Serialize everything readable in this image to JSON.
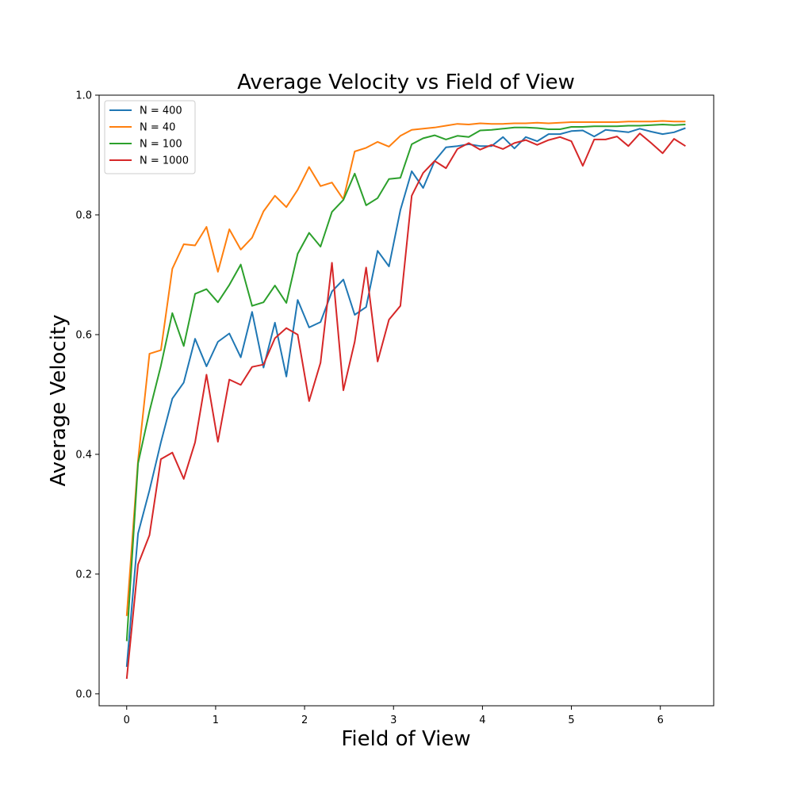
{
  "chart_data": {
    "type": "line",
    "title": "Average Velocity vs Field of View",
    "xlabel": "Field of View",
    "ylabel": "Average Velocity",
    "xlim": [
      -0.31,
      6.6
    ],
    "ylim": [
      -0.02,
      1.0
    ],
    "xticks": [
      0,
      1,
      2,
      3,
      4,
      5,
      6
    ],
    "xtick_labels": [
      "0",
      "1",
      "2",
      "3",
      "4",
      "5",
      "6"
    ],
    "yticks": [
      0.0,
      0.2,
      0.4,
      0.6,
      0.8,
      1.0
    ],
    "ytick_labels": [
      "0.0",
      "0.2",
      "0.4",
      "0.6",
      "0.8",
      "1.0"
    ],
    "grid": false,
    "legend_position": "upper-left",
    "x": [
      0,
      0.128,
      0.256,
      0.385,
      0.513,
      0.641,
      0.769,
      0.897,
      1.026,
      1.154,
      1.282,
      1.41,
      1.538,
      1.667,
      1.795,
      1.923,
      2.051,
      2.179,
      2.308,
      2.436,
      2.564,
      2.692,
      2.821,
      2.949,
      3.077,
      3.205,
      3.333,
      3.462,
      3.59,
      3.718,
      3.846,
      3.974,
      4.103,
      4.231,
      4.359,
      4.487,
      4.615,
      4.744,
      4.872,
      5.0,
      5.128,
      5.256,
      5.385,
      5.513,
      5.641,
      5.769,
      5.897,
      6.026,
      6.154,
      6.283
    ],
    "series": [
      {
        "name": "N = 400",
        "color": "#1f77b4",
        "values": [
          0.045,
          0.268,
          0.34,
          0.42,
          0.493,
          0.52,
          0.593,
          0.547,
          0.588,
          0.602,
          0.562,
          0.638,
          0.545,
          0.62,
          0.53,
          0.658,
          0.612,
          0.621,
          0.672,
          0.692,
          0.633,
          0.646,
          0.74,
          0.714,
          0.808,
          0.873,
          0.845,
          0.89,
          0.913,
          0.915,
          0.918,
          0.915,
          0.915,
          0.93,
          0.911,
          0.93,
          0.923,
          0.935,
          0.935,
          0.94,
          0.941,
          0.931,
          0.942,
          0.94,
          0.938,
          0.944,
          0.939,
          0.935,
          0.938,
          0.945
        ]
      },
      {
        "name": "N = 40",
        "color": "#ff7f0e",
        "values": [
          0.13,
          0.39,
          0.568,
          0.574,
          0.71,
          0.751,
          0.749,
          0.78,
          0.705,
          0.776,
          0.742,
          0.762,
          0.806,
          0.832,
          0.813,
          0.842,
          0.88,
          0.848,
          0.854,
          0.826,
          0.906,
          0.912,
          0.922,
          0.914,
          0.932,
          0.942,
          0.944,
          0.946,
          0.949,
          0.952,
          0.951,
          0.953,
          0.952,
          0.952,
          0.953,
          0.953,
          0.954,
          0.953,
          0.954,
          0.955,
          0.955,
          0.955,
          0.955,
          0.955,
          0.956,
          0.956,
          0.956,
          0.957,
          0.956,
          0.956
        ]
      },
      {
        "name": "N = 100",
        "color": "#2ca02c",
        "values": [
          0.088,
          0.385,
          0.472,
          0.548,
          0.636,
          0.581,
          0.668,
          0.676,
          0.654,
          0.683,
          0.717,
          0.648,
          0.654,
          0.682,
          0.653,
          0.735,
          0.77,
          0.747,
          0.805,
          0.825,
          0.869,
          0.816,
          0.828,
          0.86,
          0.862,
          0.918,
          0.928,
          0.933,
          0.926,
          0.932,
          0.93,
          0.941,
          0.942,
          0.944,
          0.946,
          0.946,
          0.945,
          0.943,
          0.943,
          0.947,
          0.947,
          0.948,
          0.948,
          0.948,
          0.949,
          0.949,
          0.95,
          0.951,
          0.95,
          0.951
        ]
      },
      {
        "name": "N = 1000",
        "color": "#d62728",
        "values": [
          0.025,
          0.216,
          0.265,
          0.392,
          0.403,
          0.359,
          0.42,
          0.533,
          0.421,
          0.525,
          0.516,
          0.546,
          0.55,
          0.594,
          0.611,
          0.6,
          0.489,
          0.553,
          0.72,
          0.507,
          0.588,
          0.712,
          0.555,
          0.625,
          0.648,
          0.832,
          0.87,
          0.89,
          0.878,
          0.91,
          0.92,
          0.909,
          0.917,
          0.91,
          0.92,
          0.925,
          0.917,
          0.925,
          0.93,
          0.923,
          0.882,
          0.926,
          0.926,
          0.931,
          0.915,
          0.936,
          0.92,
          0.903,
          0.927,
          0.915
        ]
      }
    ]
  }
}
